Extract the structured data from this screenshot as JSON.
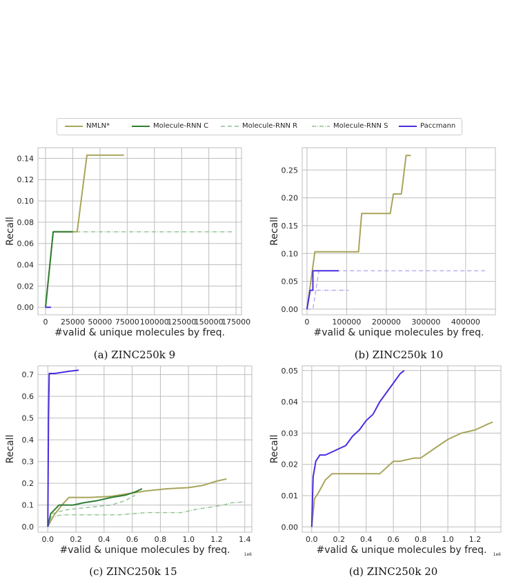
{
  "legend": [
    {
      "name": "NMLN*",
      "color": "#a8a45a",
      "dash": "",
      "width": 2
    },
    {
      "name": "Molecule-RNN C",
      "color": "#2e7d32",
      "dash": "",
      "width": 2
    },
    {
      "name": "Molecule-RNN R",
      "color": "#8fbf8f",
      "dash": "6,4",
      "width": 1.4
    },
    {
      "name": "Molecule-RNN S",
      "color": "#8fbf8f",
      "dash": "6,2,1,2",
      "width": 1.4
    },
    {
      "name": "Paccmann",
      "color": "#4b2be0",
      "dash": "",
      "width": 2
    }
  ],
  "chart_data": [
    {
      "type": "line",
      "caption": "(a) ZINC250k 9",
      "xlabel": "#valid & unique molecules by freq.",
      "ylabel": "Recall",
      "xlim": [
        -7000,
        180000
      ],
      "ylim": [
        -0.007,
        0.15
      ],
      "xticks": [
        0,
        25000,
        50000,
        75000,
        100000,
        125000,
        150000,
        175000
      ],
      "xtick_labels": [
        "0",
        "25000",
        "50000",
        "75000",
        "100000",
        "125000",
        "150000",
        "175000"
      ],
      "yticks": [
        0,
        0.02,
        0.04,
        0.06,
        0.08,
        0.1,
        0.12,
        0.14
      ],
      "ytick_labels": [
        "0.00",
        "0.02",
        "0.04",
        "0.06",
        "0.08",
        "0.10",
        "0.12",
        "0.14"
      ],
      "x_offset_text": "",
      "series": [
        {
          "name": "Molecule-RNN S",
          "x": [
            0,
            7000,
            25000,
            172000
          ],
          "y": [
            0,
            0.071,
            0.071,
            0.071
          ]
        },
        {
          "name": "NMLN*",
          "x": [
            0,
            7000,
            29000,
            38000,
            72000
          ],
          "y": [
            0,
            0.071,
            0.071,
            0.143,
            0.143
          ]
        },
        {
          "name": "Molecule-RNN C",
          "x": [
            0,
            7000,
            25000
          ],
          "y": [
            0,
            0.071,
            0.071
          ]
        },
        {
          "name": "Paccmann",
          "x": [
            0,
            5000
          ],
          "y": [
            0,
            0
          ]
        }
      ]
    },
    {
      "type": "line",
      "caption": "(b) ZINC250k 10",
      "xlabel": "#valid & unique molecules by freq.",
      "ylabel": "Recall",
      "xlim": [
        -12000,
        475000
      ],
      "ylim": [
        -0.01,
        0.29
      ],
      "xticks": [
        0,
        100000,
        200000,
        300000,
        400000
      ],
      "xtick_labels": [
        "0",
        "100000",
        "200000",
        "300000",
        "400000"
      ],
      "yticks": [
        0,
        0.05,
        0.1,
        0.15,
        0.2,
        0.25
      ],
      "ytick_labels": [
        "0.00",
        "0.05",
        "0.10",
        "0.15",
        "0.20",
        "0.25"
      ],
      "x_offset_text": "",
      "series": [
        {
          "name": "NMLN*",
          "x": [
            0,
            20000,
            20000,
            130000,
            138000,
            210000,
            218000,
            238000,
            250000,
            262000
          ],
          "y": [
            0,
            0.103,
            0.103,
            0.103,
            0.172,
            0.172,
            0.207,
            0.207,
            0.276,
            0.276
          ]
        },
        {
          "name": "Molecule-RNN R (Paccmann)",
          "x": [
            0,
            15000,
            30000,
            450000
          ],
          "y": [
            0,
            0,
            0.069,
            0.069
          ]
        },
        {
          "name": "Molecule-RNN S (Paccmann)",
          "x": [
            5000,
            12000,
            20000,
            105000
          ],
          "y": [
            0.034,
            0.034,
            0.034,
            0.034
          ]
        },
        {
          "name": "Paccmann",
          "x": [
            0,
            8000,
            8000,
            15000,
            15000,
            80000
          ],
          "y": [
            0,
            0.034,
            0.034,
            0.034,
            0.069,
            0.069
          ]
        }
      ]
    },
    {
      "type": "line",
      "caption": "(c) ZINC250k 15",
      "xlabel": "#valid & unique molecules by freq.",
      "ylabel": "Recall",
      "xlim": [
        -0.07,
        1.45
      ],
      "ylim": [
        -0.025,
        0.74
      ],
      "xticks": [
        0,
        0.2,
        0.4,
        0.6,
        0.8,
        1.0,
        1.2,
        1.4
      ],
      "xtick_labels": [
        "0.0",
        "0.2",
        "0.4",
        "0.6",
        "0.8",
        "1.0",
        "1.2",
        "1.4"
      ],
      "yticks": [
        0,
        0.1,
        0.2,
        0.3,
        0.4,
        0.5,
        0.6,
        0.7
      ],
      "ytick_labels": [
        "0.0",
        "0.1",
        "0.2",
        "0.3",
        "0.4",
        "0.5",
        "0.6",
        "0.7"
      ],
      "x_offset_text": "1e6",
      "series": [
        {
          "name": "Molecule-RNN S",
          "x": [
            0,
            0.03,
            0.06,
            0.1,
            0.2,
            0.5,
            0.6,
            0.7,
            0.9,
            0.95,
            1.05,
            1.15,
            1.25,
            1.3,
            1.4
          ],
          "y": [
            0,
            0.04,
            0.05,
            0.055,
            0.055,
            0.055,
            0.06,
            0.065,
            0.065,
            0.065,
            0.08,
            0.09,
            0.1,
            0.11,
            0.115
          ]
        },
        {
          "name": "Molecule-RNN R",
          "x": [
            0,
            0.03,
            0.08,
            0.15,
            0.3,
            0.45,
            0.55,
            0.62
          ],
          "y": [
            0,
            0.06,
            0.07,
            0.08,
            0.09,
            0.1,
            0.12,
            0.145
          ]
        },
        {
          "name": "NMLN*",
          "x": [
            0,
            0.04,
            0.1,
            0.15,
            0.3,
            0.45,
            0.55,
            0.7,
            0.85,
            1.0,
            1.1,
            1.2,
            1.27
          ],
          "y": [
            0,
            0.05,
            0.1,
            0.135,
            0.135,
            0.14,
            0.15,
            0.165,
            0.175,
            0.18,
            0.19,
            0.21,
            0.22
          ]
        },
        {
          "name": "Molecule-RNN C",
          "x": [
            0,
            0.02,
            0.05,
            0.08,
            0.18,
            0.25,
            0.35,
            0.45,
            0.55,
            0.62,
            0.67
          ],
          "y": [
            0,
            0.06,
            0.08,
            0.1,
            0.1,
            0.11,
            0.12,
            0.135,
            0.145,
            0.16,
            0.175
          ]
        },
        {
          "name": "Paccmann",
          "x": [
            0,
            0.005,
            0.01,
            0.05,
            0.15,
            0.22
          ],
          "y": [
            0,
            0.5,
            0.705,
            0.705,
            0.715,
            0.72
          ]
        }
      ]
    },
    {
      "type": "line",
      "caption": "(d) ZINC250k 20",
      "xlabel": "#valid & unique molecules by freq.",
      "ylabel": "Recall",
      "xlim": [
        -0.07,
        1.39
      ],
      "ylim": [
        -0.0017,
        0.0515
      ],
      "xticks": [
        0,
        0.2,
        0.4,
        0.6,
        0.8,
        1.0,
        1.2
      ],
      "xtick_labels": [
        "0.0",
        "0.2",
        "0.4",
        "0.6",
        "0.8",
        "1.0",
        "1.2"
      ],
      "yticks": [
        0,
        0.01,
        0.02,
        0.03,
        0.04,
        0.05
      ],
      "ytick_labels": [
        "0.00",
        "0.01",
        "0.02",
        "0.03",
        "0.04",
        "0.05"
      ],
      "x_offset_text": "1e6",
      "series": [
        {
          "name": "NMLN*",
          "x": [
            0,
            0.02,
            0.05,
            0.1,
            0.15,
            0.5,
            0.55,
            0.6,
            0.65,
            0.75,
            0.8,
            0.9,
            1.0,
            1.1,
            1.2,
            1.3,
            1.33
          ],
          "y": [
            0,
            0.009,
            0.011,
            0.015,
            0.017,
            0.017,
            0.019,
            0.021,
            0.021,
            0.022,
            0.022,
            0.025,
            0.028,
            0.03,
            0.031,
            0.033,
            0.0335
          ]
        },
        {
          "name": "Paccmann",
          "x": [
            0,
            0.01,
            0.03,
            0.06,
            0.1,
            0.15,
            0.2,
            0.25,
            0.3,
            0.35,
            0.4,
            0.45,
            0.5,
            0.55,
            0.6,
            0.65,
            0.68
          ],
          "y": [
            0,
            0.016,
            0.021,
            0.023,
            0.023,
            0.024,
            0.025,
            0.026,
            0.029,
            0.031,
            0.034,
            0.036,
            0.04,
            0.043,
            0.046,
            0.049,
            0.05
          ]
        }
      ]
    }
  ]
}
